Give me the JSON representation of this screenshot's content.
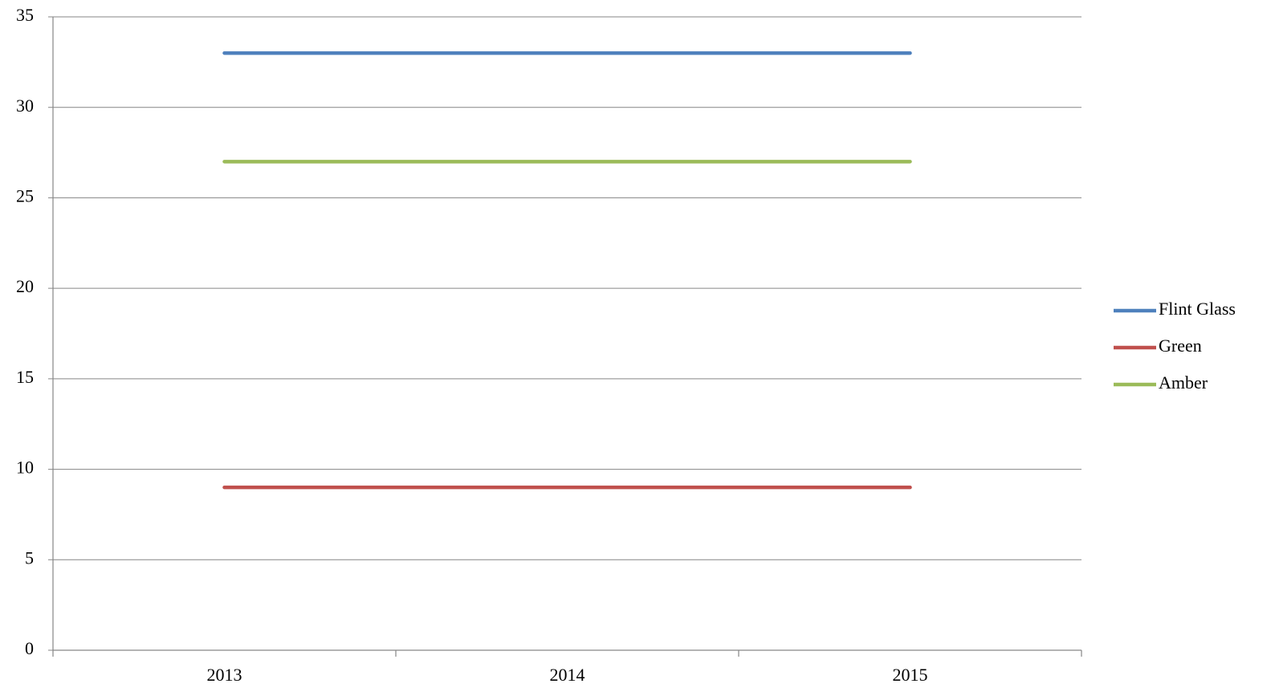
{
  "chart_data": {
    "type": "line",
    "categories": [
      "2013",
      "2014",
      "2015"
    ],
    "series": [
      {
        "name": "Flint Glass",
        "color": "#4f81bd",
        "values": [
          33,
          33,
          33
        ]
      },
      {
        "name": "Green",
        "color": "#c0504d",
        "values": [
          9,
          9,
          9
        ]
      },
      {
        "name": "Amber",
        "color": "#9bbb59",
        "values": [
          27,
          27,
          27
        ]
      }
    ],
    "ylim": [
      0,
      35
    ],
    "yticks": [
      0,
      5,
      10,
      15,
      20,
      25,
      30,
      35
    ],
    "grid": true,
    "legend": "right"
  }
}
